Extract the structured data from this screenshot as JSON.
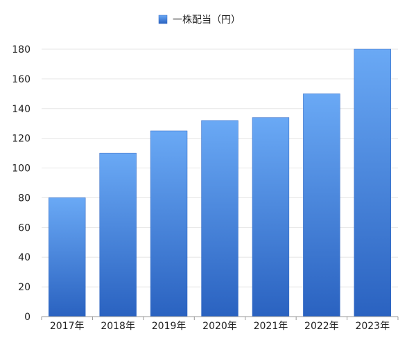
{
  "chart_data": {
    "type": "bar",
    "title": "",
    "xlabel": "",
    "ylabel": "",
    "categories": [
      "2017年",
      "2018年",
      "2019年",
      "2020年",
      "2021年",
      "2022年",
      "2023年"
    ],
    "series": [
      {
        "name": "一株配当（円）",
        "values": [
          80,
          110,
          125,
          132,
          134,
          150,
          180
        ]
      }
    ],
    "ylim": [
      0,
      180
    ],
    "yticks": [
      0,
      20,
      40,
      60,
      80,
      100,
      120,
      140,
      160,
      180
    ],
    "grid": true,
    "legend_position": "top-center",
    "colors": {
      "bar_top": "#6aa9f5",
      "bar_bottom": "#2a62c0",
      "grid": "#e6e6e6",
      "axis": "#999999"
    }
  }
}
